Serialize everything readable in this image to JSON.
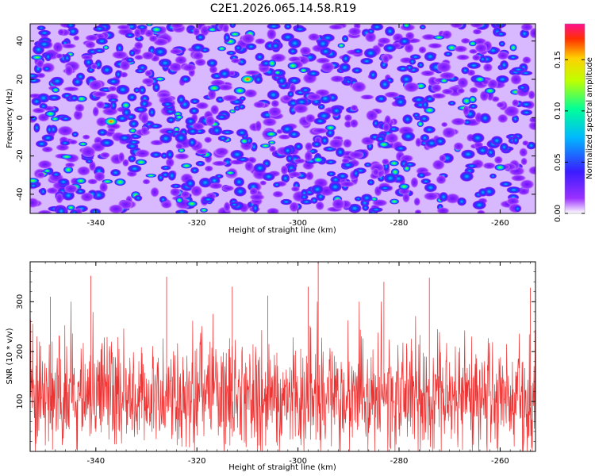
{
  "title": "C2E1.2026.065.14.58.R19",
  "chart_data": [
    {
      "type": "heatmap",
      "name": "spectrogram",
      "xlabel": "Height of straight line (km)",
      "ylabel": "Frequency (Hz)",
      "xlim": [
        -353,
        -253
      ],
      "ylim": [
        -50,
        49
      ],
      "xticks": [
        -340,
        -320,
        -300,
        -280,
        -260
      ],
      "yticks": [
        -40,
        -20,
        0,
        20,
        40
      ],
      "xtick_labels": [
        "-340",
        "-320",
        "-300",
        "-280",
        "-260"
      ],
      "ytick_labels": [
        "-40",
        "-20",
        "0",
        "20",
        "40"
      ],
      "colorbar": {
        "label": "Normalized spectral amplitude",
        "range": [
          0.0,
          0.185
        ],
        "ticks": [
          0.0,
          0.05,
          0.1,
          0.15
        ],
        "tick_labels": [
          "0.00",
          "0.05",
          "0.10",
          "0.15"
        ]
      },
      "peaks": [
        {
          "x": -310,
          "y": 20,
          "value": 0.18
        },
        {
          "x": -337,
          "y": -2,
          "value": 0.15
        },
        {
          "x": -328,
          "y": 46,
          "value": 0.1
        },
        {
          "x": -296,
          "y": -22,
          "value": 0.1
        },
        {
          "x": -283,
          "y": -14,
          "value": 0.09
        },
        {
          "x": -279,
          "y": -36,
          "value": 0.11
        },
        {
          "x": -260,
          "y": -26,
          "value": 0.08
        },
        {
          "x": -262,
          "y": 14,
          "value": 0.09
        },
        {
          "x": -349,
          "y": 2,
          "value": 0.09
        },
        {
          "x": -343,
          "y": -33,
          "value": 0.08
        },
        {
          "x": -321,
          "y": -45,
          "value": 0.08
        },
        {
          "x": -264,
          "y": 20,
          "value": 0.08
        }
      ]
    },
    {
      "type": "line",
      "name": "snr",
      "xlabel": "Height of straight line (km)",
      "ylabel": "SNR (10 * v/v)",
      "xlim": [
        -353,
        -253
      ],
      "ylim": [
        0,
        380
      ],
      "xticks": [
        -340,
        -320,
        -300,
        -280,
        -260
      ],
      "yticks": [
        100,
        200,
        300
      ],
      "xtick_labels": [
        "-340",
        "-320",
        "-300",
        "-280",
        "-260"
      ],
      "ytick_labels": [
        "100",
        "200",
        "300"
      ],
      "series": [
        {
          "name": "SNR",
          "color": "#ee3333",
          "baseline": 110,
          "spread": 55,
          "min": 0,
          "max": 382
        }
      ],
      "spikes": [
        {
          "x": -296,
          "y": 382
        },
        {
          "x": -341,
          "y": 352
        },
        {
          "x": -326,
          "y": 350
        },
        {
          "x": -283,
          "y": 340
        },
        {
          "x": -274,
          "y": 348
        },
        {
          "x": -313,
          "y": 330
        },
        {
          "x": -298,
          "y": 330
        },
        {
          "x": -254,
          "y": 328
        },
        {
          "x": -349,
          "y": 310
        },
        {
          "x": -306,
          "y": 312
        }
      ]
    }
  ]
}
